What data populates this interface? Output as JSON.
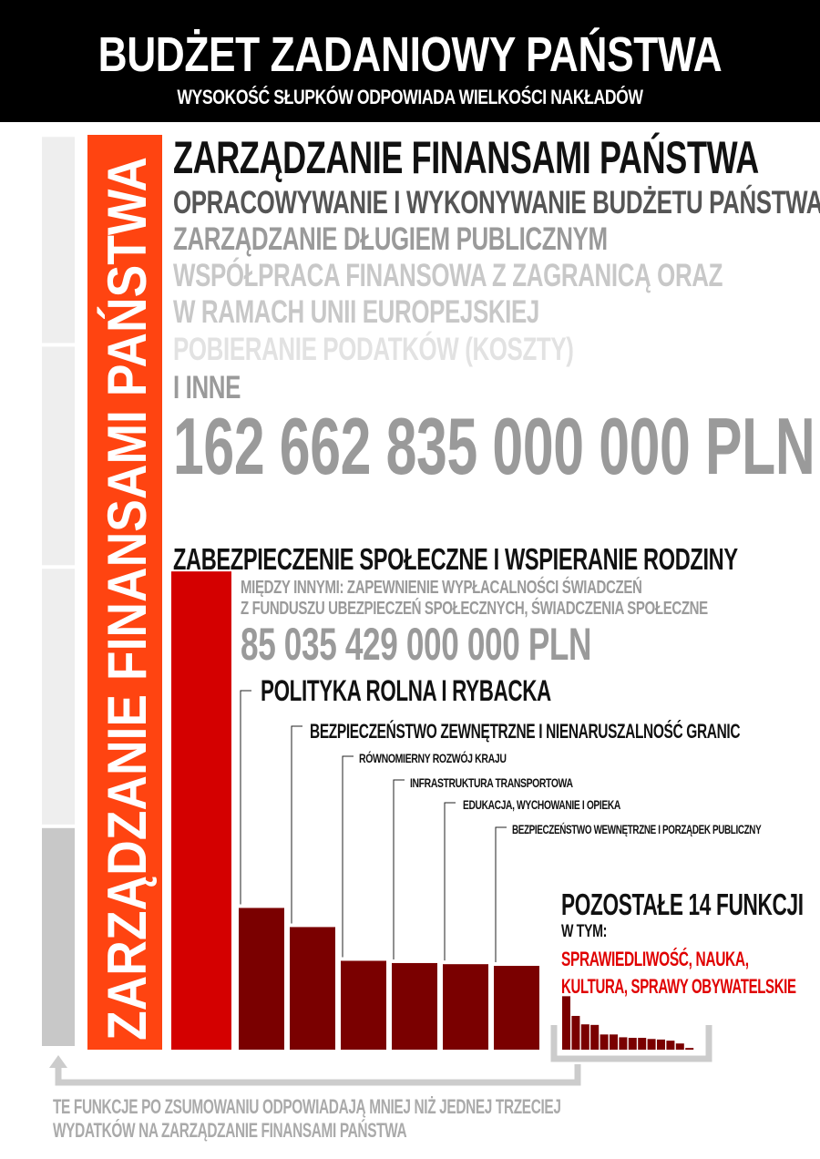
{
  "header": {
    "title": "BUDŻET ZADANIOWY PAŃSTWA",
    "subtitle": "WYSOKOŚĆ SŁUPKÓW ODPOWIADA WIELKOŚCI NAKŁADÓW"
  },
  "colors": {
    "header_bg": "#000000",
    "finance_bar": "#ff4411",
    "social_bar": "#d40000",
    "functions_bar": "#7a0000",
    "grey_bar": "#c8c8c8",
    "light_grey_bar": "#eeeeee",
    "red_text": "#e00000"
  },
  "finance": {
    "bar_label": "ZARZĄDZANIE FINANSAMI PAŃSTWA",
    "title": "ZARZĄDZANIE FINANSAMI PAŃSTWA",
    "items": [
      "OPRACOWYWANIE I WYKONYWANIE BUDŻETU PAŃSTWA",
      "ZARZĄDZANIE DŁUGIEM PUBLICZNYM",
      "WSPÓŁPRACA FINANSOWA Z ZAGRANICĄ ORAZ",
      "W RAMACH UNII EUROPEJSKIEJ",
      "POBIERANIE PODATKÓW (KOSZTY)",
      "I INNE"
    ],
    "amount": "162 662 835 000 000 PLN"
  },
  "social": {
    "title": "ZABEZPIECZENIE SPOŁECZNE I WSPIERANIE RODZINY",
    "desc_line1": "MIĘDZY INNYMI: ZAPEWNIENIE WYPŁACALNOŚCI ŚWIADCZEŃ",
    "desc_line2": "Z FUNDUSZU UBEZPIECZEŃ SPOŁECZNYCH, ŚWIADCZENIA SPOŁECZNE",
    "amount": "85 035 429 000 000 PLN"
  },
  "functions": [
    "POLITYKA ROLNA I RYBACKA",
    "BEZPIECZEŃSTWO ZEWNĘTRZNE I NIENARUSZALNOŚĆ GRANIC",
    "RÓWNOMIERNY ROZWÓJ KRAJU",
    "INFRASTRUKTURA TRANSPORTOWA",
    "EDUKACJA, WYCHOWANIE I OPIEKA",
    "BEZPIECZEŃSTWO WEWNĘTRZNE I PORZĄDEK PUBLICZNY"
  ],
  "remaining": {
    "title": "POZOSTAŁE 14 FUNKCJI",
    "subtitle": "W TYM:",
    "red_line1": "SPRAWIEDLIWOŚĆ, NAUKA,",
    "red_line2": "KULTURA, SPRAWY OBYWATELSKIE"
  },
  "footer": {
    "line1": "TE FUNKCJE PO ZSUMOWANIU  ODPOWIADAJĄ MNIEJ NIŻ JEDNEJ TRZECIEJ",
    "line2": "WYDATKÓW NA ZARZĄDZANIE FINANSAMI PAŃSTWA"
  },
  "chart_data": {
    "type": "bar",
    "title": "BUDŻET ZADANIOWY PAŃSTWA",
    "subtitle": "WYSOKOŚĆ SŁUPKÓW ODPOWIADA WIELKOŚCI NAKŁADÓW",
    "value_unit": "PLN",
    "categories": [
      "ZARZĄDZANIE FINANSAMI PAŃSTWA",
      "ZABEZPIECZENIE SPOŁECZNE I WSPIERANIE RODZINY",
      "POLITYKA ROLNA I RYBACKA",
      "BEZPIECZEŃSTWO ZEWNĘTRZNE I NIENARUSZALNOŚĆ GRANIC",
      "RÓWNOMIERNY ROZWÓJ KRAJU",
      "INFRASTRUKTURA TRANSPORTOWA",
      "EDUKACJA, WYCHOWANIE I OPIEKA",
      "BEZPIECZEŃSTWO WEWNĘTRZNE I PORZĄDEK PUBLICZNY"
    ],
    "values": [
      162662835000000,
      85035429000000,
      25200000000000,
      21800000000000,
      15800000000000,
      15400000000000,
      15200000000000,
      14900000000000
    ],
    "remaining_values": [
      9500000000000,
      6000000000000,
      4500000000000,
      4400000000000,
      2700000000000,
      2700000000000,
      2200000000000,
      2100000000000,
      2100000000000,
      1900000000000,
      1800000000000,
      1600000000000,
      1100000000000,
      300000000000
    ],
    "comparison_stack_segments": [
      39400000000000,
      46100000000000,
      39500000000000,
      37300000000000
    ],
    "ylim": [
      0,
      162662835000000
    ]
  }
}
